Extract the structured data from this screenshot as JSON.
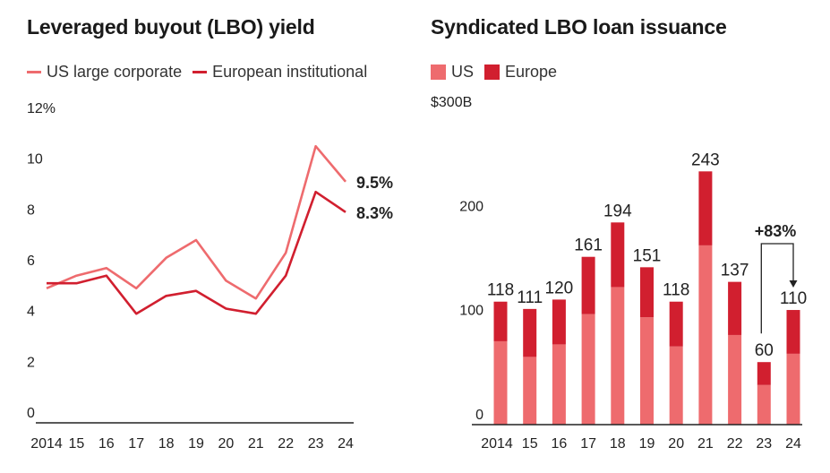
{
  "colors": {
    "us": "#ee6b6e",
    "europe": "#d11f2f",
    "axis": "#222222",
    "text": "#222222"
  },
  "chart_data": [
    {
      "type": "line",
      "title": "Leveraged buyout (LBO) yield",
      "x": [
        "2014",
        "15",
        "16",
        "17",
        "18",
        "19",
        "20",
        "21",
        "22",
        "23",
        "24"
      ],
      "ylim": [
        0,
        12
      ],
      "yticks": [
        "0",
        "2",
        "4",
        "6",
        "8",
        "10",
        "12%"
      ],
      "series": [
        {
          "name": "US large corporate",
          "color": "#ee6b6e",
          "values": [
            5.3,
            5.8,
            6.1,
            5.3,
            6.5,
            7.2,
            5.6,
            4.9,
            6.7,
            10.9,
            9.5
          ],
          "end_label": "9.5%"
        },
        {
          "name": "European institutional",
          "color": "#d11f2f",
          "values": [
            5.5,
            5.5,
            5.8,
            4.3,
            5.0,
            5.2,
            4.5,
            4.3,
            5.8,
            9.1,
            8.3
          ],
          "end_label": "8.3%"
        }
      ],
      "legend": "top-left"
    },
    {
      "type": "bar",
      "stacked": true,
      "title": "Syndicated LBO loan issuance",
      "categories": [
        "2014",
        "15",
        "16",
        "17",
        "18",
        "19",
        "20",
        "21",
        "22",
        "23",
        "24"
      ],
      "ylim": [
        0,
        300
      ],
      "yticks": [
        "0",
        "100",
        "200",
        "$300B"
      ],
      "series": [
        {
          "name": "US",
          "color": "#ee6b6e",
          "values": [
            80,
            65,
            77,
            106,
            132,
            103,
            75,
            172,
            86,
            38,
            68
          ]
        },
        {
          "name": "Europe",
          "color": "#d11f2f",
          "values": [
            38,
            46,
            43,
            55,
            62,
            48,
            43,
            71,
            51,
            22,
            42
          ]
        }
      ],
      "totals": [
        "118",
        "111",
        "120",
        "161",
        "194",
        "151",
        "118",
        "243",
        "137",
        "60",
        "110"
      ],
      "annotation": "+83%",
      "legend": "top-left"
    }
  ]
}
